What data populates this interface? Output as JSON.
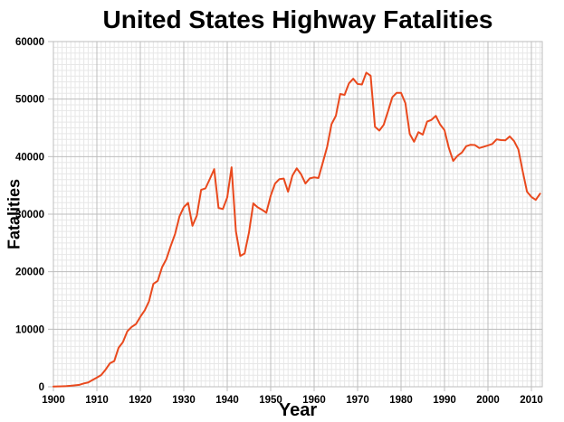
{
  "chart_data": {
    "type": "line",
    "title": "United States Highway Fatalities",
    "xlabel": "Year",
    "ylabel": "Fatalities",
    "xlim": [
      1900,
      2012.5
    ],
    "ylim": [
      0,
      60000
    ],
    "x_major_ticks": [
      1900,
      1910,
      1920,
      1930,
      1940,
      1950,
      1960,
      1970,
      1980,
      1990,
      2000,
      2010
    ],
    "y_major_ticks": [
      0,
      10000,
      20000,
      30000,
      40000,
      50000,
      60000
    ],
    "x_minor_step": 1,
    "y_minor_step": 1000,
    "grid": true,
    "legend": "none",
    "colors": {
      "line": "#E9491D",
      "grid_major": "#BDBDBD",
      "grid_minor": "#E7E7E7",
      "text": "#000000",
      "background": "#FFFFFF"
    },
    "series": [
      {
        "name": "Highway fatalities",
        "x": [
          1900,
          1901,
          1902,
          1903,
          1904,
          1905,
          1906,
          1907,
          1908,
          1909,
          1910,
          1911,
          1912,
          1913,
          1914,
          1915,
          1916,
          1917,
          1918,
          1919,
          1920,
          1921,
          1922,
          1923,
          1924,
          1925,
          1926,
          1927,
          1928,
          1929,
          1930,
          1931,
          1932,
          1933,
          1934,
          1935,
          1936,
          1937,
          1938,
          1939,
          1940,
          1941,
          1942,
          1943,
          1944,
          1945,
          1946,
          1947,
          1948,
          1949,
          1950,
          1951,
          1952,
          1953,
          1954,
          1955,
          1956,
          1957,
          1958,
          1959,
          1960,
          1961,
          1962,
          1963,
          1964,
          1965,
          1966,
          1967,
          1968,
          1969,
          1970,
          1971,
          1972,
          1973,
          1974,
          1975,
          1976,
          1977,
          1978,
          1979,
          1980,
          1981,
          1982,
          1983,
          1984,
          1985,
          1986,
          1987,
          1988,
          1989,
          1990,
          1991,
          1992,
          1993,
          1994,
          1995,
          1996,
          1997,
          1998,
          1999,
          2000,
          2001,
          2002,
          2003,
          2004,
          2005,
          2006,
          2007,
          2008,
          2009,
          2010,
          2011,
          2012
        ],
        "values": [
          36,
          54,
          79,
          117,
          172,
          252,
          338,
          581,
          751,
          1174,
          1599,
          2043,
          2968,
          4079,
          4468,
          6779,
          7766,
          9630,
          10390,
          10896,
          12155,
          13253,
          14859,
          17870,
          18400,
          20771,
          22194,
          24470,
          26557,
          29592,
          31204,
          31963,
          27979,
          29746,
          34240,
          34494,
          36126,
          37819,
          31083,
          30895,
          32914,
          38142,
          27007,
          22727,
          23165,
          26785,
          31874,
          31193,
          30775,
          30246,
          33186,
          35309,
          36088,
          36190,
          33890,
          36688,
          37965,
          36932,
          35331,
          36223,
          36399,
          36285,
          38980,
          41723,
          45645,
          47089,
          50894,
          50724,
          52725,
          53543,
          52627,
          52542,
          54589,
          54052,
          45196,
          44525,
          45523,
          47878,
          50331,
          51093,
          51091,
          49301,
          43945,
          42589,
          44257,
          43825,
          46087,
          46390,
          47087,
          45582,
          44599,
          41508,
          39250,
          40150,
          40716,
          41817,
          42065,
          42013,
          41501,
          41717,
          41945,
          42196,
          43005,
          42884,
          42836,
          43510,
          42708,
          41259,
          37423,
          33883,
          32999,
          32479,
          33561
        ]
      }
    ]
  }
}
